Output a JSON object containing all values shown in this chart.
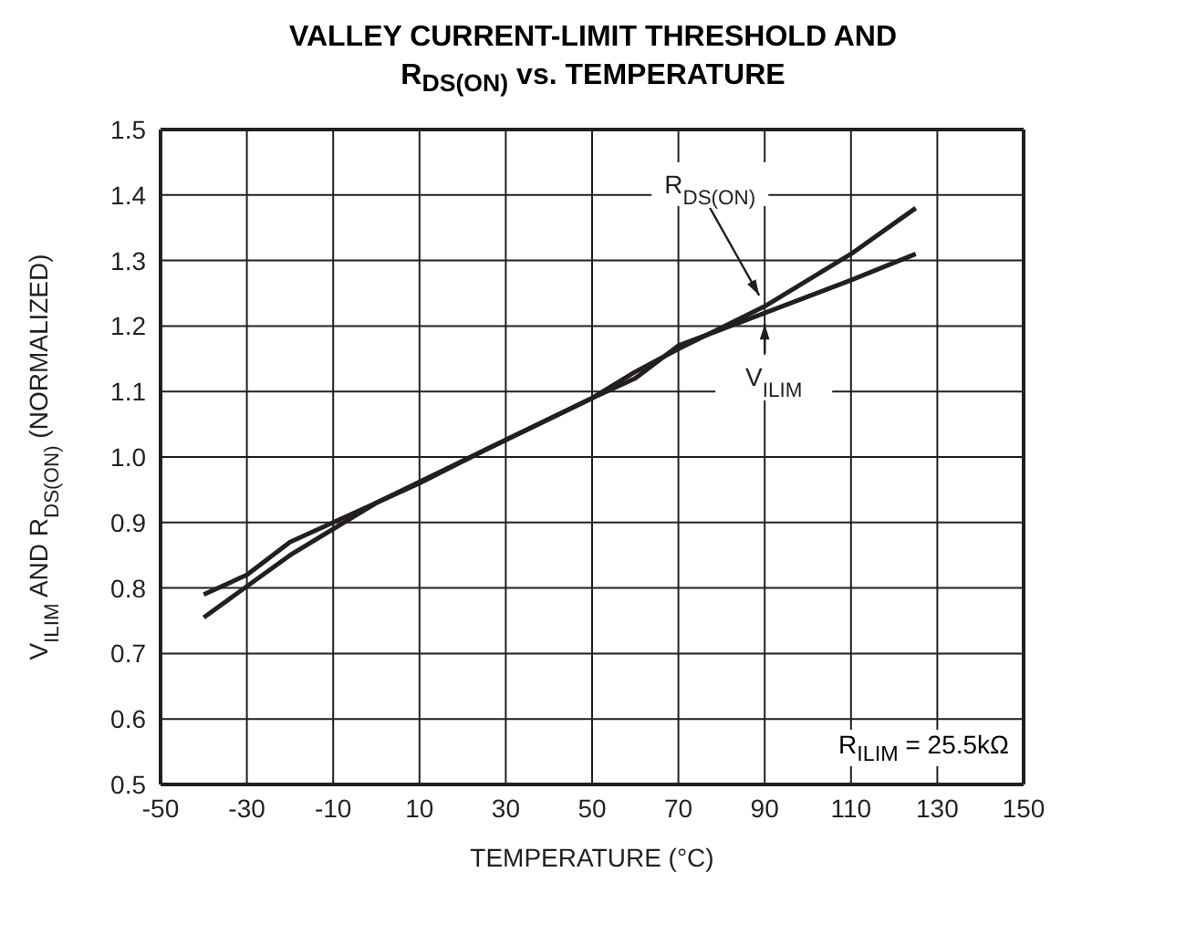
{
  "chart_data": {
    "type": "line",
    "title": "VALLEY CURRENT-LIMIT THRESHOLD AND R$_{DS(ON)}$ vs. TEMPERATURE",
    "xlabel": "TEMPERATURE (°C)",
    "ylabel": "V$_{ILIM}$ AND R$_{DS(ON)}$ (NORMALIZED)",
    "series": [
      {
        "name": "R$_{DS(ON)}$",
        "color": "#231f20",
        "x": [
          -40,
          -20,
          0,
          25,
          50,
          60,
          70,
          90,
          110,
          125
        ],
        "values": [
          0.755,
          0.85,
          0.93,
          1.01,
          1.09,
          1.13,
          1.165,
          1.23,
          1.31,
          1.38
        ]
      },
      {
        "name": "V$_{ILIM}$",
        "color": "#231f20",
        "x": [
          -40,
          -30,
          -20,
          -10,
          10,
          25,
          50,
          60,
          70,
          90,
          110,
          125
        ],
        "values": [
          0.79,
          0.82,
          0.87,
          0.9,
          0.96,
          1.01,
          1.09,
          1.12,
          1.17,
          1.22,
          1.27,
          1.31
        ]
      }
    ],
    "annotations": [
      "R$_{ILIM}$ = 25.5kΩ"
    ],
    "xlim": [
      -50,
      150
    ],
    "xticks": [
      -50,
      -30,
      -10,
      10,
      30,
      50,
      70,
      90,
      110,
      130,
      150
    ],
    "ylim": [
      0.5,
      1.5
    ],
    "yticks": [
      0.5,
      0.6,
      0.7,
      0.8,
      0.9,
      {
        "value": 1.0,
        "label": "1.0"
      },
      1.1,
      1.2,
      1.3,
      1.4,
      1.5
    ],
    "grid": true,
    "marker": "none",
    "line_style": "solid"
  }
}
